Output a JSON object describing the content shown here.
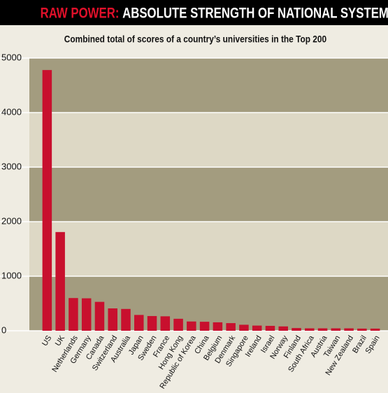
{
  "chart_data": {
    "type": "bar",
    "title_highlight": "RAW POWER:",
    "title": "ABSOLUTE STRENGTH OF NATIONAL SYSTEMS",
    "subtitle": "Combined total of scores of a country’s universities in the Top 200",
    "categories": [
      "US",
      "UK",
      "Netherlands",
      "Germany",
      "Canada",
      "Switzerland",
      "Australia",
      "Japan",
      "Sweden",
      "France",
      "Hong Kong",
      "Republic of Korea",
      "China",
      "Belgium",
      "Denmark",
      "Singapore",
      "Ireland",
      "Israel",
      "Norway",
      "Finland",
      "South Africa",
      "Austria",
      "Taiwan",
      "New Zealand",
      "Brazil",
      "Spain"
    ],
    "values": [
      4780,
      1810,
      600,
      595,
      530,
      410,
      400,
      290,
      270,
      265,
      220,
      170,
      165,
      155,
      140,
      110,
      95,
      90,
      80,
      50,
      45,
      45,
      45,
      45,
      40,
      40
    ],
    "color": "#c8102e",
    "ylim": [
      0,
      5000
    ],
    "yticks": [
      0,
      1000,
      2000,
      3000,
      4000,
      5000
    ]
  }
}
